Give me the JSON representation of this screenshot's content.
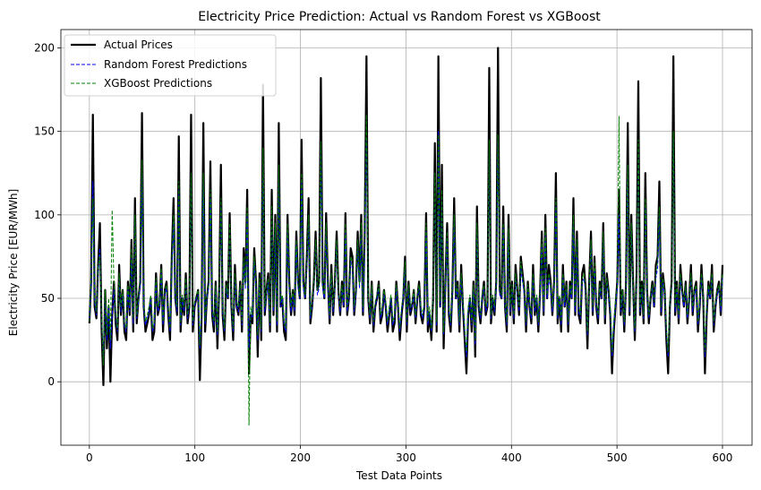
{
  "chart_data": {
    "type": "line",
    "title": "Electricity Price Prediction: Actual vs Random Forest vs XGBoost",
    "xlabel": "Test Data Points",
    "ylabel": "Electricity Price [EUR/MWh]",
    "xlim": [
      -27,
      628
    ],
    "ylim": [
      -38,
      211
    ],
    "xticks": [
      0,
      100,
      200,
      300,
      400,
      500,
      600
    ],
    "yticks": [
      0,
      50,
      100,
      150,
      200
    ],
    "grid": true,
    "legend_position": "top-left",
    "series": [
      {
        "name": "Actual Prices",
        "color": "#000000",
        "style": "solid",
        "values": [
          35,
          60,
          160,
          45,
          38,
          70,
          95,
          30,
          -2,
          55,
          20,
          45,
          0,
          40,
          60,
          35,
          25,
          70,
          40,
          55,
          30,
          25,
          60,
          40,
          85,
          30,
          110,
          35,
          50,
          60,
          161,
          45,
          30,
          35,
          40,
          50,
          25,
          30,
          65,
          40,
          45,
          70,
          30,
          55,
          60,
          40,
          25,
          75,
          110,
          50,
          40,
          147,
          30,
          50,
          40,
          65,
          35,
          45,
          160,
          30,
          45,
          50,
          55,
          1,
          40,
          155,
          30,
          50,
          60,
          132,
          40,
          30,
          60,
          20,
          55,
          130,
          40,
          25,
          60,
          50,
          101,
          45,
          25,
          70,
          45,
          40,
          60,
          30,
          80,
          60,
          115,
          5,
          40,
          35,
          80,
          60,
          15,
          65,
          25,
          178,
          40,
          55,
          65,
          30,
          115,
          40,
          100,
          30,
          155,
          45,
          50,
          30,
          25,
          100,
          60,
          40,
          55,
          40,
          90,
          60,
          50,
          145,
          60,
          50,
          75,
          110,
          35,
          45,
          60,
          90,
          55,
          60,
          182,
          60,
          50,
          101,
          60,
          35,
          70,
          40,
          60,
          90,
          55,
          40,
          60,
          45,
          101,
          40,
          50,
          80,
          75,
          40,
          55,
          90,
          60,
          100,
          40,
          90,
          195,
          50,
          35,
          60,
          30,
          45,
          50,
          60,
          35,
          40,
          55,
          45,
          30,
          40,
          50,
          30,
          35,
          60,
          45,
          25,
          40,
          50,
          75,
          30,
          60,
          40,
          45,
          55,
          35,
          50,
          60,
          40,
          35,
          45,
          101,
          30,
          40,
          25,
          50,
          143,
          30,
          195,
          45,
          130,
          20,
          60,
          95,
          40,
          30,
          55,
          110,
          50,
          60,
          30,
          70,
          45,
          25,
          5,
          40,
          50,
          30,
          60,
          15,
          105,
          45,
          35,
          50,
          60,
          40,
          45,
          188,
          35,
          50,
          40,
          60,
          200,
          55,
          50,
          105,
          45,
          30,
          100,
          40,
          60,
          35,
          70,
          55,
          40,
          75,
          65,
          55,
          30,
          60,
          45,
          35,
          70,
          40,
          50,
          30,
          55,
          90,
          40,
          100,
          50,
          70,
          60,
          40,
          60,
          125,
          35,
          50,
          30,
          70,
          45,
          60,
          30,
          60,
          50,
          110,
          40,
          90,
          40,
          35,
          65,
          70,
          55,
          20,
          60,
          90,
          40,
          75,
          45,
          35,
          60,
          50,
          95,
          35,
          65,
          55,
          40,
          5,
          30,
          45,
          60,
          115,
          40,
          55,
          30,
          60,
          155,
          40,
          100,
          60,
          25,
          65,
          180,
          40,
          60,
          35,
          125,
          55,
          35,
          50,
          60,
          45,
          70,
          75,
          120,
          40,
          65,
          55,
          25,
          5,
          45,
          60,
          195,
          40,
          60,
          35,
          70,
          55,
          45,
          60,
          35,
          50,
          70,
          40,
          55,
          60,
          30,
          45,
          70,
          50,
          5,
          40,
          60,
          50,
          70,
          30,
          45,
          55,
          60,
          40,
          70
        ]
      },
      {
        "name": "Random Forest Predictions",
        "color": "#0000ff",
        "style": "dashed",
        "values": [
          38,
          58,
          120,
          48,
          40,
          65,
          80,
          35,
          15,
          50,
          25,
          45,
          20,
          40,
          55,
          38,
          30,
          62,
          42,
          52,
          33,
          30,
          55,
          42,
          75,
          35,
          95,
          38,
          48,
          58,
          125,
          44,
          34,
          38,
          42,
          50,
          30,
          34,
          60,
          42,
          45,
          65,
          34,
          52,
          56,
          42,
          30,
          68,
          95,
          50,
          42,
          115,
          34,
          50,
          42,
          60,
          38,
          46,
          120,
          34,
          45,
          50,
          52,
          20,
          42,
          120,
          34,
          50,
          56,
          110,
          42,
          34,
          56,
          28,
          52,
          105,
          42,
          30,
          56,
          50,
          90,
          45,
          30,
          62,
          45,
          42,
          56,
          34,
          72,
          56,
          100,
          20,
          42,
          38,
          72,
          56,
          25,
          60,
          30,
          130,
          42,
          52,
          60,
          34,
          100,
          42,
          90,
          34,
          125,
          45,
          50,
          34,
          30,
          90,
          56,
          42,
          52,
          42,
          82,
          56,
          50,
          120,
          56,
          50,
          68,
          95,
          38,
          45,
          56,
          82,
          52,
          56,
          140,
          56,
          50,
          90,
          56,
          38,
          62,
          42,
          56,
          82,
          52,
          42,
          56,
          45,
          90,
          42,
          50,
          72,
          68,
          42,
          52,
          82,
          56,
          90,
          42,
          82,
          145,
          50,
          38,
          56,
          34,
          45,
          50,
          56,
          38,
          42,
          52,
          45,
          34,
          42,
          50,
          34,
          38,
          56,
          45,
          30,
          42,
          50,
          68,
          34,
          56,
          42,
          45,
          52,
          38,
          50,
          56,
          42,
          38,
          45,
          90,
          34,
          42,
          30,
          50,
          120,
          34,
          150,
          45,
          110,
          28,
          56,
          85,
          42,
          34,
          52,
          95,
          50,
          56,
          34,
          62,
          45,
          30,
          15,
          42,
          50,
          34,
          56,
          22,
          90,
          45,
          38,
          50,
          56,
          42,
          45,
          140,
          38,
          50,
          42,
          56,
          145,
          52,
          50,
          92,
          45,
          34,
          88,
          42,
          56,
          38,
          62,
          52,
          42,
          68,
          60,
          52,
          34,
          56,
          45,
          38,
          62,
          42,
          50,
          34,
          52,
          82,
          42,
          88,
          50,
          62,
          56,
          42,
          56,
          105,
          38,
          50,
          34,
          62,
          45,
          56,
          34,
          56,
          50,
          95,
          42,
          82,
          42,
          38,
          60,
          62,
          52,
          28,
          56,
          82,
          42,
          68,
          45,
          38,
          56,
          50,
          85,
          38,
          60,
          52,
          42,
          15,
          34,
          45,
          56,
          100,
          42,
          52,
          34,
          56,
          125,
          42,
          90,
          56,
          30,
          60,
          140,
          42,
          56,
          38,
          105,
          52,
          38,
          50,
          56,
          45,
          62,
          68,
          100,
          42,
          60,
          52,
          30,
          15,
          45,
          56,
          145,
          42,
          56,
          38,
          62,
          52,
          45,
          56,
          38,
          50,
          62,
          42,
          52,
          56,
          34,
          45,
          62,
          50,
          15,
          42,
          56,
          50,
          62,
          34,
          45,
          52,
          56,
          42,
          62
        ]
      },
      {
        "name": "XGBoost Predictions",
        "color": "#008000",
        "style": "dashed",
        "values": [
          36,
          62,
          110,
          50,
          42,
          70,
          75,
          38,
          10,
          55,
          28,
          50,
          25,
          103,
          60,
          40,
          32,
          65,
          45,
          55,
          35,
          32,
          58,
          45,
          80,
          38,
          100,
          40,
          50,
          62,
          133,
          46,
          36,
          40,
          45,
          52,
          32,
          36,
          62,
          45,
          48,
          68,
          36,
          55,
          58,
          45,
          32,
          72,
          100,
          52,
          45,
          120,
          36,
          52,
          45,
          62,
          40,
          48,
          125,
          36,
          48,
          52,
          55,
          22,
          45,
          125,
          36,
          52,
          58,
          115,
          45,
          36,
          58,
          30,
          55,
          110,
          45,
          32,
          58,
          52,
          95,
          48,
          32,
          65,
          48,
          45,
          58,
          36,
          75,
          58,
          105,
          -26,
          45,
          40,
          75,
          58,
          28,
          62,
          32,
          140,
          45,
          55,
          62,
          36,
          105,
          45,
          95,
          36,
          130,
          48,
          52,
          36,
          32,
          95,
          58,
          45,
          55,
          45,
          85,
          58,
          52,
          125,
          58,
          52,
          72,
          100,
          40,
          48,
          58,
          85,
          55,
          58,
          144,
          58,
          52,
          95,
          58,
          40,
          65,
          45,
          58,
          85,
          55,
          45,
          58,
          48,
          95,
          45,
          52,
          75,
          72,
          45,
          55,
          85,
          58,
          95,
          45,
          85,
          160,
          52,
          40,
          58,
          36,
          48,
          52,
          58,
          40,
          45,
          55,
          48,
          36,
          45,
          52,
          36,
          40,
          58,
          48,
          32,
          45,
          52,
          72,
          36,
          58,
          45,
          48,
          55,
          40,
          52,
          58,
          45,
          40,
          48,
          95,
          36,
          45,
          32,
          52,
          125,
          36,
          148,
          48,
          115,
          30,
          58,
          90,
          45,
          36,
          55,
          100,
          52,
          58,
          36,
          65,
          48,
          32,
          18,
          45,
          52,
          36,
          58,
          25,
          95,
          48,
          40,
          52,
          58,
          45,
          48,
          145,
          40,
          52,
          45,
          58,
          148,
          55,
          52,
          95,
          48,
          36,
          92,
          45,
          58,
          40,
          65,
          55,
          45,
          72,
          62,
          55,
          36,
          58,
          48,
          40,
          65,
          45,
          52,
          36,
          55,
          85,
          45,
          92,
          52,
          65,
          58,
          45,
          58,
          110,
          40,
          52,
          36,
          65,
          48,
          58,
          36,
          58,
          52,
          100,
          45,
          85,
          45,
          40,
          62,
          65,
          55,
          30,
          58,
          85,
          45,
          72,
          48,
          40,
          58,
          52,
          90,
          40,
          62,
          55,
          45,
          18,
          36,
          48,
          58,
          159,
          45,
          55,
          36,
          58,
          130,
          45,
          95,
          58,
          32,
          62,
          145,
          45,
          58,
          40,
          110,
          55,
          40,
          52,
          58,
          48,
          65,
          72,
          105,
          45,
          62,
          55,
          32,
          18,
          48,
          58,
          150,
          45,
          58,
          40,
          65,
          55,
          48,
          58,
          40,
          52,
          65,
          45,
          55,
          58,
          36,
          48,
          65,
          52,
          18,
          45,
          58,
          52,
          65,
          36,
          48,
          55,
          58,
          45,
          65
        ]
      }
    ]
  }
}
